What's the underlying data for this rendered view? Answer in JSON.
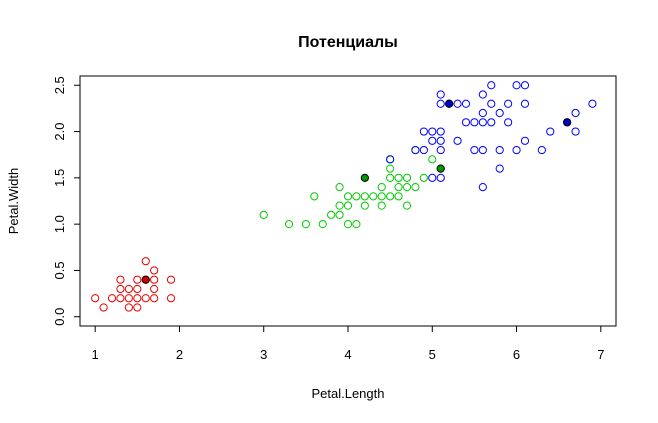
{
  "chart_data": {
    "type": "scatter",
    "title": "Потенциалы",
    "xlabel": "Petal.Length",
    "ylabel": "Petal.Width",
    "xlim": [
      0.82,
      7.18
    ],
    "ylim": [
      -0.1,
      2.6
    ],
    "x_ticks": [
      1,
      2,
      3,
      4,
      5,
      6,
      7
    ],
    "y_ticks": [
      0.0,
      0.5,
      1.0,
      1.5,
      2.0,
      2.5
    ],
    "y_tick_labels": [
      "0.0",
      "0.5",
      "1.0",
      "1.5",
      "2.0",
      "2.5"
    ],
    "grid": false,
    "series": [
      {
        "color": "#e60000",
        "marker": "open-circle",
        "points": [
          [
            1.0,
            0.2
          ],
          [
            1.1,
            0.1
          ],
          [
            1.2,
            0.2
          ],
          [
            1.3,
            0.2
          ],
          [
            1.3,
            0.3
          ],
          [
            1.3,
            0.4
          ],
          [
            1.4,
            0.1
          ],
          [
            1.4,
            0.2
          ],
          [
            1.4,
            0.3
          ],
          [
            1.5,
            0.1
          ],
          [
            1.5,
            0.2
          ],
          [
            1.5,
            0.3
          ],
          [
            1.5,
            0.4
          ],
          [
            1.6,
            0.2
          ],
          [
            1.6,
            0.4
          ],
          [
            1.6,
            0.6
          ],
          [
            1.7,
            0.2
          ],
          [
            1.7,
            0.3
          ],
          [
            1.7,
            0.4
          ],
          [
            1.7,
            0.5
          ],
          [
            1.9,
            0.2
          ],
          [
            1.9,
            0.4
          ]
        ]
      },
      {
        "color": "#00cc00",
        "marker": "open-circle",
        "points": [
          [
            3.0,
            1.1
          ],
          [
            3.3,
            1.0
          ],
          [
            3.5,
            1.0
          ],
          [
            3.6,
            1.3
          ],
          [
            3.7,
            1.0
          ],
          [
            3.8,
            1.1
          ],
          [
            3.9,
            1.1
          ],
          [
            3.9,
            1.2
          ],
          [
            3.9,
            1.4
          ],
          [
            4.0,
            1.0
          ],
          [
            4.0,
            1.2
          ],
          [
            4.0,
            1.3
          ],
          [
            4.1,
            1.0
          ],
          [
            4.1,
            1.3
          ],
          [
            4.2,
            1.2
          ],
          [
            4.2,
            1.3
          ],
          [
            4.3,
            1.3
          ],
          [
            4.4,
            1.2
          ],
          [
            4.4,
            1.3
          ],
          [
            4.4,
            1.4
          ],
          [
            4.5,
            1.3
          ],
          [
            4.5,
            1.5
          ],
          [
            4.5,
            1.6
          ],
          [
            4.5,
            1.7
          ],
          [
            4.6,
            1.3
          ],
          [
            4.6,
            1.4
          ],
          [
            4.6,
            1.5
          ],
          [
            4.7,
            1.2
          ],
          [
            4.7,
            1.4
          ],
          [
            4.7,
            1.5
          ],
          [
            4.8,
            1.4
          ],
          [
            4.8,
            1.8
          ],
          [
            4.9,
            1.5
          ],
          [
            5.0,
            1.7
          ],
          [
            5.1,
            1.6
          ]
        ]
      },
      {
        "color": "#0000ff",
        "marker": "open-circle",
        "points": [
          [
            4.5,
            1.7
          ],
          [
            4.8,
            1.8
          ],
          [
            4.9,
            1.8
          ],
          [
            4.9,
            2.0
          ],
          [
            5.0,
            1.5
          ],
          [
            5.0,
            1.9
          ],
          [
            5.0,
            2.0
          ],
          [
            5.1,
            1.5
          ],
          [
            5.1,
            1.8
          ],
          [
            5.1,
            1.9
          ],
          [
            5.1,
            2.0
          ],
          [
            5.1,
            2.3
          ],
          [
            5.1,
            2.4
          ],
          [
            5.2,
            2.3
          ],
          [
            5.3,
            1.9
          ],
          [
            5.3,
            2.3
          ],
          [
            5.4,
            2.1
          ],
          [
            5.4,
            2.3
          ],
          [
            5.5,
            1.8
          ],
          [
            5.5,
            2.1
          ],
          [
            5.6,
            1.4
          ],
          [
            5.6,
            1.8
          ],
          [
            5.6,
            2.1
          ],
          [
            5.6,
            2.2
          ],
          [
            5.6,
            2.4
          ],
          [
            5.7,
            2.1
          ],
          [
            5.7,
            2.3
          ],
          [
            5.7,
            2.5
          ],
          [
            5.8,
            1.6
          ],
          [
            5.8,
            1.8
          ],
          [
            5.8,
            2.2
          ],
          [
            5.9,
            2.1
          ],
          [
            5.9,
            2.3
          ],
          [
            6.0,
            1.8
          ],
          [
            6.0,
            2.5
          ],
          [
            6.1,
            1.9
          ],
          [
            6.1,
            2.3
          ],
          [
            6.1,
            2.5
          ],
          [
            6.3,
            1.8
          ],
          [
            6.4,
            2.0
          ],
          [
            6.6,
            2.1
          ],
          [
            6.7,
            2.0
          ],
          [
            6.7,
            2.2
          ],
          [
            6.9,
            2.3
          ]
        ]
      }
    ],
    "highlighted_points": [
      {
        "x": 1.6,
        "y": 0.4,
        "color": "#cc0000"
      },
      {
        "x": 4.2,
        "y": 1.5,
        "color": "#009900"
      },
      {
        "x": 5.1,
        "y": 1.6,
        "color": "#009900"
      },
      {
        "x": 5.2,
        "y": 2.3,
        "color": "#0000cc"
      },
      {
        "x": 6.6,
        "y": 2.1,
        "color": "#0000cc"
      }
    ]
  }
}
